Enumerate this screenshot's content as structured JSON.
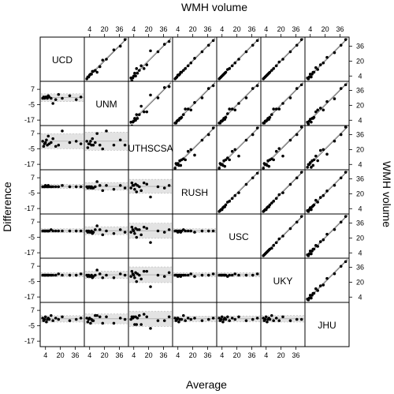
{
  "chart_data": {
    "type": "scatter",
    "layout": "pairwise scatterplot matrix: upper panels are WMH volume vs WMH volume with identity line; lower panels are Bland-Altman plots (Difference vs Average) with shaded limits of agreement",
    "top_title": "WMH volume",
    "right_title": "WMH volume",
    "xlabel": "Average",
    "ylabel": "Difference",
    "sites": [
      "UCD",
      "UNM",
      "UTHSCSA",
      "RUSH",
      "USC",
      "UKY",
      "JHU"
    ],
    "upper_ticks": [
      4,
      20,
      36
    ],
    "lower_x_ticks": [
      4,
      20,
      36
    ],
    "lower_y_ticks": [
      7,
      -5,
      -17
    ],
    "upper_range": [
      0,
      44
    ],
    "lower_x_range": [
      0,
      44
    ],
    "lower_y_range": [
      -20,
      12
    ],
    "points_x": [
      1,
      2,
      3,
      4,
      5,
      6,
      7,
      8,
      10,
      12,
      15,
      18,
      22,
      30,
      37,
      42
    ],
    "panel_offsets": [
      [
        0,
        0,
        0,
        0,
        0,
        0,
        0,
        0,
        0,
        0,
        0,
        0,
        0,
        0,
        0,
        0
      ],
      [
        0,
        1,
        0,
        1,
        1,
        0,
        2,
        1,
        0,
        -4,
        -1,
        3,
        0,
        2,
        -1,
        1
      ],
      [
        1,
        -3,
        -1,
        0,
        2,
        -2,
        5,
        -1,
        0,
        3,
        -3,
        -2,
        9,
        0,
        1,
        -1
      ],
      [
        0,
        0,
        0,
        1,
        0,
        0,
        1,
        0,
        0,
        0,
        0,
        0,
        1,
        0,
        0,
        0
      ],
      [
        0,
        0,
        0,
        0,
        0,
        0,
        0,
        0,
        1,
        0,
        0,
        0,
        0,
        0,
        0,
        0
      ],
      [
        0,
        0,
        0,
        0,
        0,
        0,
        0,
        0,
        0,
        0,
        0,
        1,
        0,
        0,
        0,
        1
      ],
      [
        1,
        -1,
        0,
        2,
        -2,
        0,
        1,
        0,
        3,
        -1,
        1,
        0,
        2,
        -1,
        0,
        1
      ]
    ],
    "panel_bias": [
      0,
      0.5,
      1,
      0.3,
      0.2,
      0.3,
      0.4
    ]
  }
}
